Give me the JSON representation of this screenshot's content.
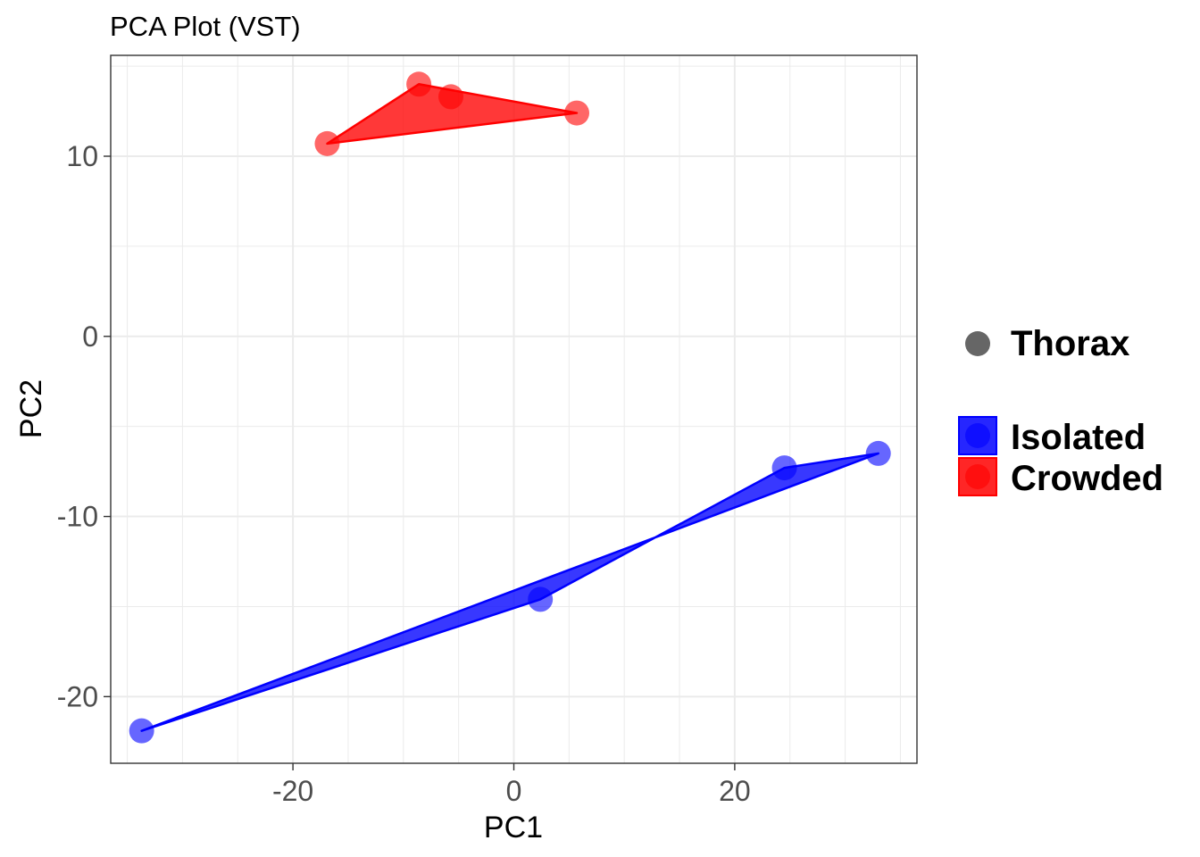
{
  "chart_data": {
    "type": "scatter",
    "title": "PCA Plot (VST)",
    "xlabel": "PC1",
    "ylabel": "PC2",
    "xlim": [
      -36.5,
      36.5
    ],
    "ylim": [
      -23.7,
      15.6
    ],
    "xticks": [
      -20,
      0,
      20
    ],
    "yticks": [
      -20,
      -10,
      0,
      10
    ],
    "grid": true,
    "legend_position": "right",
    "shape_legend": {
      "label": "Thorax",
      "color": "#666666"
    },
    "series": [
      {
        "name": "Isolated",
        "color": "#0000ff",
        "points": [
          {
            "x": -33.7,
            "y": -21.9
          },
          {
            "x": 2.4,
            "y": -14.6
          },
          {
            "x": 24.5,
            "y": -7.3
          },
          {
            "x": 33.0,
            "y": -6.5
          }
        ],
        "hull": [
          {
            "x": -33.7,
            "y": -21.9
          },
          {
            "x": 2.4,
            "y": -14.6
          },
          {
            "x": 24.5,
            "y": -7.3
          },
          {
            "x": 33.0,
            "y": -6.5
          }
        ]
      },
      {
        "name": "Crowded",
        "color": "#ff0000",
        "points": [
          {
            "x": -16.9,
            "y": 10.7
          },
          {
            "x": -8.6,
            "y": 14.0
          },
          {
            "x": -5.7,
            "y": 13.3
          },
          {
            "x": 5.7,
            "y": 12.4
          }
        ],
        "hull": [
          {
            "x": -16.9,
            "y": 10.7
          },
          {
            "x": -8.6,
            "y": 14.0
          },
          {
            "x": 5.7,
            "y": 12.4
          }
        ]
      }
    ]
  }
}
